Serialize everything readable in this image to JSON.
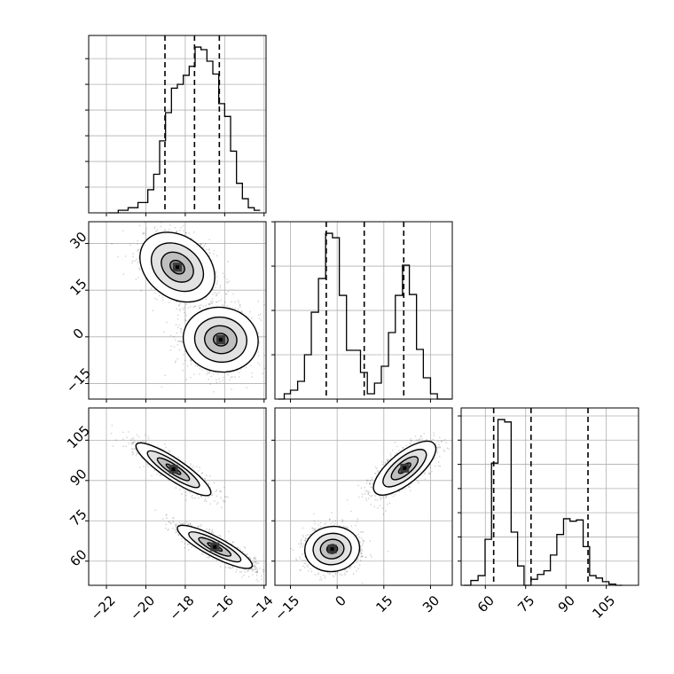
{
  "chart_data": {
    "type": "corner",
    "layout": "lower-triangle 3x3 corner plot",
    "grid": true,
    "params": [
      {
        "ticks": [
          -22,
          -20,
          -18,
          -16,
          -14
        ],
        "tick_labels": [
          "−22",
          "−20",
          "−18",
          "−16",
          "−14"
        ],
        "range": [
          -22.9,
          -13.9
        ]
      },
      {
        "ticks": [
          -15,
          0,
          15,
          30
        ],
        "tick_labels": [
          "−15",
          "0",
          "15",
          "30"
        ],
        "range": [
          -20,
          37
        ]
      },
      {
        "ticks": [
          60,
          75,
          90,
          105
        ],
        "tick_labels": [
          "60",
          "75",
          "90",
          "105"
        ],
        "range": [
          51,
          117
        ]
      }
    ],
    "histograms": [
      {
        "param_index": 0,
        "bin_edges": [
          -21.9,
          -21.4,
          -20.9,
          -20.4,
          -19.9,
          -19.6,
          -19.3,
          -19.0,
          -18.7,
          -18.4,
          -18.1,
          -17.8,
          -17.5,
          -17.2,
          -16.9,
          -16.6,
          -16.3,
          -16.0,
          -15.7,
          -15.4,
          -15.1,
          -14.8,
          -14.5,
          -14.2
        ],
        "counts": [
          0,
          2,
          4,
          8,
          18,
          30,
          56,
          78,
          97,
          100,
          107,
          114,
          129,
          127,
          118,
          108,
          85,
          75,
          48,
          23,
          11,
          4,
          2
        ],
        "quantiles": [
          -19.03,
          -17.53,
          -16.27
        ]
      },
      {
        "param_index": 1,
        "bin_edges": [
          -19,
          -17,
          -15,
          -12.7,
          -10.5,
          -8.3,
          -6,
          -3.7,
          -1.5,
          0.7,
          3,
          5.2,
          7.5,
          9.7,
          12,
          14.2,
          16.5,
          18.7,
          21,
          23.2,
          25.5,
          27.7,
          30,
          32.2,
          36.7
        ],
        "counts": [
          0,
          6,
          10,
          20,
          50,
          98,
          136,
          187,
          182,
          117,
          55,
          55,
          30,
          6,
          18,
          37,
          75,
          117,
          151,
          118,
          56,
          24,
          6,
          0
        ],
        "quantiles": [
          -3.5,
          8.7,
          21.4
        ]
      },
      {
        "param_index": 2,
        "bin_edges": [
          52,
          54.6,
          57.3,
          59.9,
          62.3,
          64.7,
          67.2,
          69.6,
          72,
          74.4,
          77.0,
          79.4,
          81.8,
          84.2,
          86.6,
          89.1,
          91.5,
          93.9,
          96.4,
          98.8,
          101.2,
          103.6,
          106,
          108.5,
          111
        ],
        "counts": [
          0,
          4,
          8,
          38,
          101,
          137,
          135,
          44,
          16,
          0,
          5,
          9,
          12,
          25,
          42,
          55,
          53,
          54,
          32,
          8,
          6,
          3,
          1,
          0
        ],
        "quantiles": [
          63.1,
          77.0,
          98.2
        ]
      }
    ],
    "pairs": [
      {
        "x_param": 0,
        "y_param": 1,
        "modes": [
          {
            "center": [
              -18.4,
              22.4
            ],
            "sx": 0.95,
            "sy": 5.6,
            "rho": -0.28,
            "weight": 0.48
          },
          {
            "center": [
              -16.2,
              -0.9
            ],
            "sx": 0.95,
            "sy": 5.2,
            "rho": -0.05,
            "weight": 0.52
          }
        ],
        "levels": [
          0.39,
          0.86,
          1.39,
          2.0
        ]
      },
      {
        "x_param": 0,
        "y_param": 2,
        "modes": [
          {
            "center": [
              -18.6,
              94.2
            ],
            "sx": 0.95,
            "sy": 4.9,
            "rho": -0.88,
            "weight": 0.48
          },
          {
            "center": [
              -16.5,
              65.3
            ],
            "sx": 0.95,
            "sy": 4.0,
            "rho": -0.86,
            "weight": 0.52
          }
        ],
        "levels": [
          0.39,
          0.86,
          1.39,
          2.0
        ]
      },
      {
        "x_param": 1,
        "y_param": 2,
        "modes": [
          {
            "center": [
              -1.6,
              64.5
            ],
            "sx": 4.4,
            "sy": 4.2,
            "rho": 0.05,
            "weight": 0.52
          },
          {
            "center": [
              21.7,
              94.6
            ],
            "sx": 5.0,
            "sy": 5.0,
            "rho": 0.72,
            "weight": 0.48
          }
        ],
        "levels": [
          0.39,
          0.86,
          1.39,
          2.0
        ]
      }
    ]
  }
}
